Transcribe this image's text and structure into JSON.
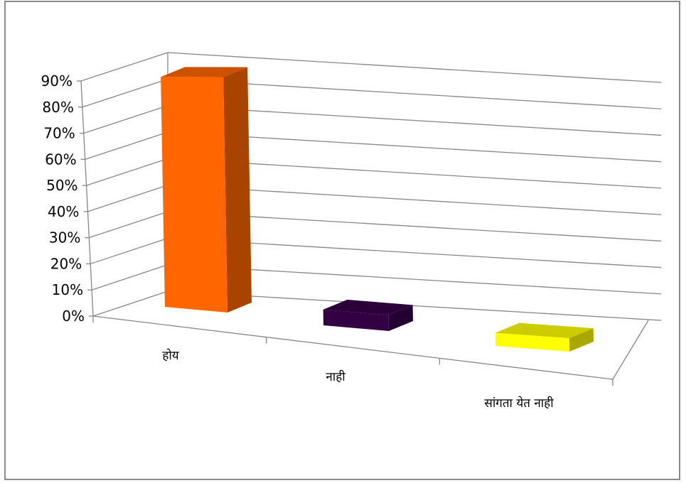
{
  "chart_data": {
    "type": "bar",
    "title": "",
    "xlabel": "",
    "ylabel": "",
    "categories": [
      "होय",
      "नाही",
      "सांगता येत नाही"
    ],
    "values": [
      0.88,
      0.06,
      0.05
    ],
    "ylim": [
      0,
      0.9
    ],
    "yticks": [
      "0%",
      "10%",
      "20%",
      "30%",
      "40%",
      "50%",
      "60%",
      "70%",
      "80%",
      "90%"
    ],
    "grid": true,
    "legend": "none",
    "colors": {
      "front": [
        "#ff6600",
        "#330044",
        "#ffff00"
      ],
      "side": [
        "#a84300",
        "#220033",
        "#a8a800"
      ],
      "top": [
        "#cc5200",
        "#2b003a",
        "#cccc00"
      ],
      "grid": "#868686",
      "axis": "#868686"
    }
  }
}
